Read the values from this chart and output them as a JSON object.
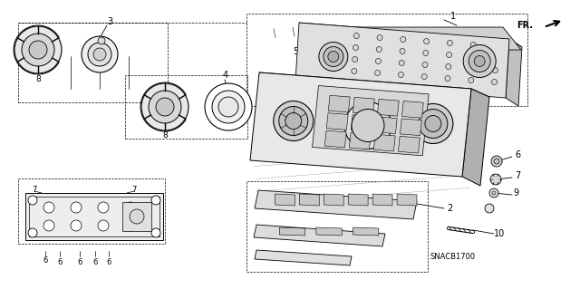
{
  "background_color": "#ffffff",
  "fig_width": 6.4,
  "fig_height": 3.19,
  "dpi": 100,
  "snac_text": "SNACB1700",
  "gray_light": "#c8c8c8",
  "gray_mid": "#a8a8a8",
  "gray_dark": "#888888"
}
